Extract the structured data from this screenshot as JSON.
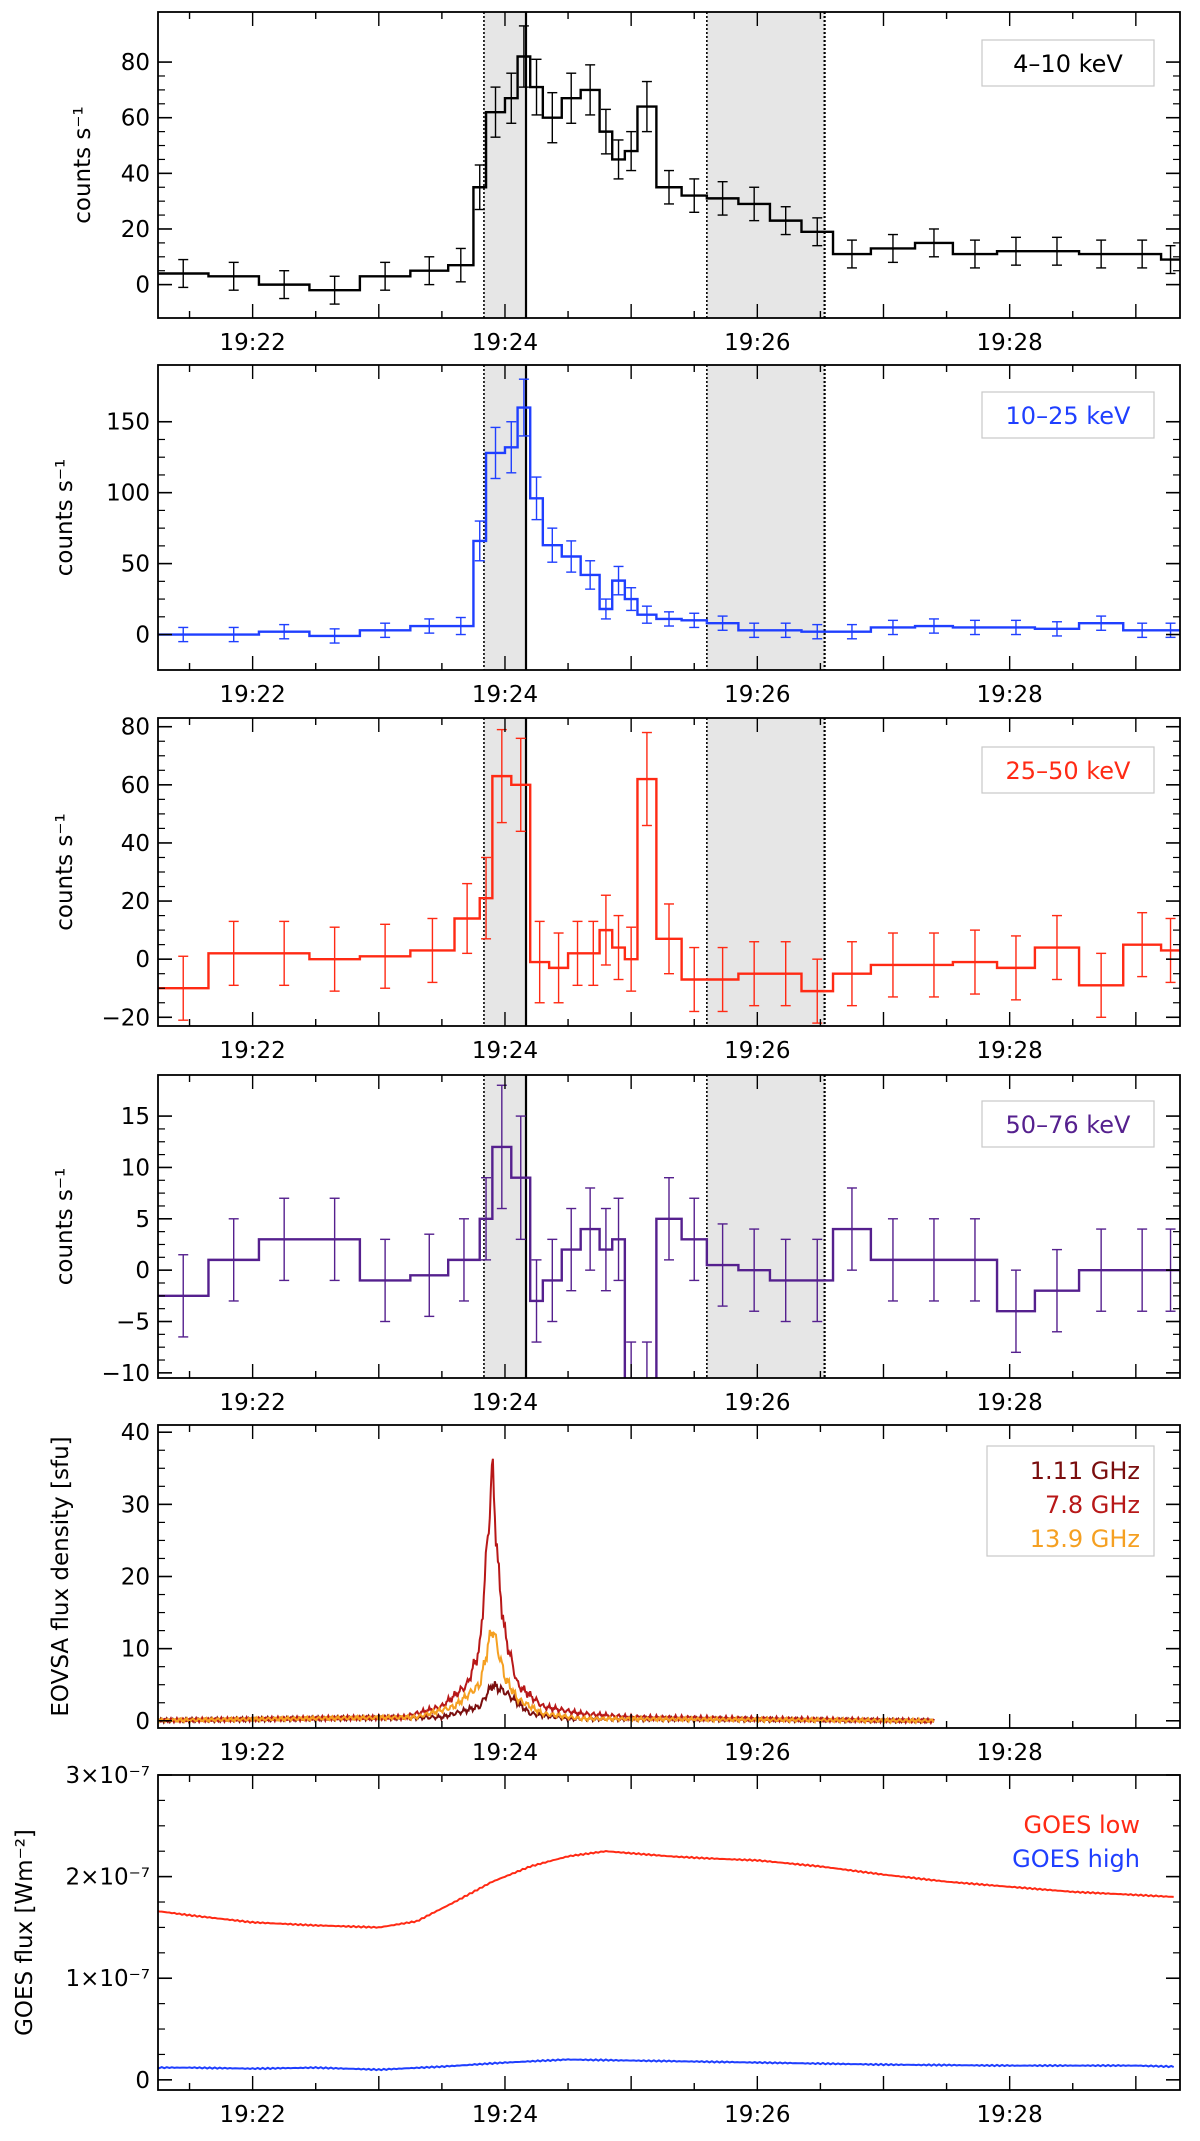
{
  "colors": {
    "black": "#000000",
    "blue": "#1f3fff",
    "red": "#ff2a14",
    "purple": "#55208e",
    "dark_red": "#7a0e0e",
    "mid_red": "#b81818",
    "orange": "#f5a022",
    "shade": "#e6e6e6"
  },
  "time_ticks": [
    "19:22",
    "19:24",
    "19:26",
    "19:28"
  ],
  "shaded_intervals": [
    [
      "19:23:50",
      "19:24:10"
    ],
    [
      "19:25:36",
      "19:26:32"
    ]
  ],
  "chart_data": [
    {
      "type": "line",
      "legend": "4–10 keV",
      "color": "#000000",
      "ylabel": "counts s⁻¹",
      "ylim": [
        -12,
        98
      ],
      "yticks": [
        0,
        20,
        40,
        60,
        80
      ],
      "ytick_labels": [
        "0",
        "20",
        "40",
        "60",
        "80"
      ],
      "x": [
        21.25,
        21.65,
        22.05,
        22.45,
        22.85,
        23.25,
        23.55,
        23.75,
        23.85,
        24.0,
        24.1,
        24.2,
        24.3,
        24.45,
        24.6,
        24.75,
        24.85,
        24.95,
        25.05,
        25.2,
        25.4,
        25.6,
        25.85,
        26.1,
        26.35,
        26.6,
        26.9,
        27.25,
        27.55,
        27.9,
        28.2,
        28.55,
        28.9,
        29.2
      ],
      "values": [
        4,
        3,
        0,
        -2,
        3,
        5,
        7,
        35,
        62,
        67,
        82,
        71,
        60,
        67,
        70,
        55,
        45,
        48,
        64,
        35,
        32,
        31,
        29,
        23,
        19,
        11,
        13,
        15,
        11,
        12,
        12,
        11,
        11,
        9
      ],
      "errors": [
        5,
        5,
        5,
        5,
        5,
        5,
        6,
        8,
        9,
        9,
        11,
        10,
        9,
        9,
        9,
        8,
        7,
        7,
        9,
        6,
        6,
        6,
        6,
        5,
        5,
        5,
        5,
        5,
        5,
        5,
        5,
        5,
        5,
        5
      ]
    },
    {
      "type": "line",
      "legend": "10–25 keV",
      "color": "#1f3fff",
      "ylabel": "counts s⁻¹",
      "ylim": [
        -25,
        190
      ],
      "yticks": [
        0,
        50,
        100,
        150
      ],
      "ytick_labels": [
        "0",
        "50",
        "100",
        "150"
      ],
      "x": [
        21.25,
        21.65,
        22.05,
        22.45,
        22.85,
        23.25,
        23.55,
        23.75,
        23.85,
        24.0,
        24.1,
        24.2,
        24.3,
        24.45,
        24.6,
        24.75,
        24.85,
        24.95,
        25.05,
        25.2,
        25.4,
        25.6,
        25.85,
        26.1,
        26.35,
        26.6,
        26.9,
        27.25,
        27.55,
        27.9,
        28.2,
        28.55,
        28.9,
        29.2
      ],
      "values": [
        0,
        0,
        2,
        -1,
        3,
        6,
        6,
        66,
        128,
        132,
        160,
        96,
        63,
        55,
        42,
        18,
        38,
        25,
        14,
        11,
        10,
        8,
        3,
        3,
        2,
        2,
        5,
        6,
        5,
        5,
        4,
        8,
        3,
        3
      ],
      "errors": [
        5,
        5,
        5,
        5,
        5,
        5,
        6,
        14,
        18,
        18,
        20,
        15,
        12,
        11,
        10,
        7,
        10,
        8,
        6,
        5,
        5,
        5,
        5,
        5,
        5,
        5,
        5,
        5,
        5,
        5,
        5,
        5,
        5,
        5
      ]
    },
    {
      "type": "line",
      "legend": "25–50 keV",
      "color": "#ff2a14",
      "ylabel": "counts s⁻¹",
      "ylim": [
        -23,
        83
      ],
      "yticks": [
        -20,
        0,
        20,
        40,
        60,
        80
      ],
      "ytick_labels": [
        "−20",
        "0",
        "20",
        "40",
        "60",
        "80"
      ],
      "x": [
        21.25,
        21.65,
        22.05,
        22.45,
        22.85,
        23.25,
        23.6,
        23.8,
        23.9,
        24.05,
        24.2,
        24.35,
        24.5,
        24.65,
        24.75,
        24.85,
        24.95,
        25.05,
        25.2,
        25.4,
        25.6,
        25.85,
        26.1,
        26.35,
        26.6,
        26.9,
        27.25,
        27.55,
        27.9,
        28.2,
        28.55,
        28.9,
        29.2
      ],
      "values": [
        -10,
        2,
        2,
        0,
        1,
        3,
        14,
        21,
        63,
        60,
        -1,
        -3,
        2,
        2,
        10,
        4,
        0,
        62,
        7,
        -7,
        -7,
        -5,
        -5,
        -11,
        -5,
        -2,
        -2,
        -1,
        -3,
        4,
        -9,
        5,
        3
      ],
      "errors": [
        11,
        11,
        11,
        11,
        11,
        11,
        12,
        14,
        16,
        16,
        14,
        12,
        11,
        11,
        12,
        11,
        11,
        16,
        12,
        11,
        11,
        11,
        11,
        11,
        11,
        11,
        11,
        11,
        11,
        11,
        11,
        11,
        11
      ]
    },
    {
      "type": "line",
      "legend": "50–76 keV",
      "color": "#55208e",
      "ylabel": "counts s⁻¹",
      "ylim": [
        -10.5,
        19
      ],
      "yticks": [
        -10,
        -5,
        0,
        5,
        10,
        15
      ],
      "ytick_labels": [
        "−10",
        "−5",
        "0",
        "5",
        "10",
        "15"
      ],
      "x": [
        21.25,
        21.65,
        22.05,
        22.45,
        22.85,
        23.25,
        23.55,
        23.8,
        23.9,
        24.05,
        24.2,
        24.3,
        24.45,
        24.6,
        24.75,
        24.85,
        24.95,
        25.05,
        25.2,
        25.4,
        25.6,
        25.85,
        26.1,
        26.35,
        26.6,
        26.9,
        27.25,
        27.55,
        27.9,
        28.2,
        28.55,
        28.9,
        29.2
      ],
      "values": [
        -2.5,
        1,
        3,
        3,
        -1,
        -0.5,
        1,
        5,
        12,
        9,
        -3,
        -1,
        2,
        4,
        2,
        3,
        -11,
        -11,
        5,
        3,
        0.5,
        0,
        -1,
        -1,
        4,
        1,
        1,
        1,
        -4,
        -2,
        0,
        0,
        0
      ],
      "errors": [
        4,
        4,
        4,
        4,
        4,
        4,
        4,
        4,
        6,
        6,
        4,
        4,
        4,
        4,
        4,
        4,
        4,
        4,
        4,
        4,
        4,
        4,
        4,
        4,
        4,
        4,
        4,
        4,
        4,
        4,
        4,
        4,
        4
      ]
    },
    {
      "type": "line",
      "legend": [
        "1.11 GHz",
        "7.8 GHz",
        "13.9 GHz"
      ],
      "ylabel": "EOVSA flux density [sfu]",
      "ylim": [
        -1,
        41
      ],
      "yticks": [
        0,
        10,
        20,
        30,
        40
      ],
      "ytick_labels": [
        "0",
        "10",
        "20",
        "30",
        "40"
      ],
      "series": [
        {
          "name": "1.11 GHz",
          "color": "#7a0e0e",
          "x": [
            21.0,
            23.5,
            23.8,
            23.9,
            24.0,
            24.2,
            24.5,
            27.4
          ],
          "values": [
            0,
            0.5,
            2,
            5,
            4,
            1,
            0.3,
            0
          ]
        },
        {
          "name": "7.8 GHz",
          "color": "#b81818",
          "x": [
            21.0,
            23.2,
            23.5,
            23.7,
            23.8,
            23.85,
            23.9,
            23.95,
            24.0,
            24.1,
            24.3,
            24.6,
            25.0,
            26.0,
            27.4
          ],
          "values": [
            0,
            0.5,
            2,
            5,
            10,
            22,
            35,
            20,
            12,
            5,
            2,
            1,
            0.5,
            0.3,
            0
          ]
        },
        {
          "name": "13.9 GHz",
          "color": "#f5a022",
          "x": [
            21.0,
            23.3,
            23.6,
            23.8,
            23.9,
            24.0,
            24.1,
            24.3,
            24.6,
            27.4
          ],
          "values": [
            0,
            0.5,
            2,
            5,
            13,
            6,
            3,
            1,
            0.3,
            0
          ]
        }
      ]
    },
    {
      "type": "line",
      "legend": [
        "GOES low",
        "GOES high"
      ],
      "ylabel": "GOES flux [Wm⁻²]",
      "ylim": [
        -1e-08,
        3e-07
      ],
      "yticks": [
        0,
        1e-07,
        2e-07,
        3e-07
      ],
      "ytick_labels": [
        "0",
        "1×10⁻⁷",
        "2×10⁻⁷",
        "3×10⁻⁷"
      ],
      "series": [
        {
          "name": "GOES low",
          "color": "#ff2a14",
          "x": [
            21.0,
            21.5,
            22.0,
            22.5,
            23.0,
            23.3,
            23.6,
            23.9,
            24.2,
            24.5,
            24.8,
            25.0,
            25.3,
            25.6,
            26.0,
            26.5,
            27.0,
            27.5,
            28.0,
            28.5,
            29.0,
            29.3
          ],
          "values": [
            1.7e-07,
            1.62e-07,
            1.55e-07,
            1.52e-07,
            1.5e-07,
            1.56e-07,
            1.75e-07,
            1.95e-07,
            2.1e-07,
            2.2e-07,
            2.25e-07,
            2.23e-07,
            2.2e-07,
            2.18e-07,
            2.16e-07,
            2.1e-07,
            2.02e-07,
            1.95e-07,
            1.9e-07,
            1.85e-07,
            1.82e-07,
            1.8e-07
          ]
        },
        {
          "name": "GOES high",
          "color": "#1f3fff",
          "x": [
            21.0,
            21.5,
            22.0,
            22.5,
            23.0,
            23.5,
            24.0,
            24.5,
            25.0,
            25.5,
            26.0,
            27.0,
            28.0,
            29.0,
            29.3
          ],
          "values": [
            1.2e-08,
            1.2e-08,
            1.1e-08,
            1.2e-08,
            1e-08,
            1.3e-08,
            1.7e-08,
            2e-08,
            1.9e-08,
            1.8e-08,
            1.7e-08,
            1.5e-08,
            1.4e-08,
            1.4e-08,
            1.3e-08
          ]
        }
      ]
    }
  ]
}
